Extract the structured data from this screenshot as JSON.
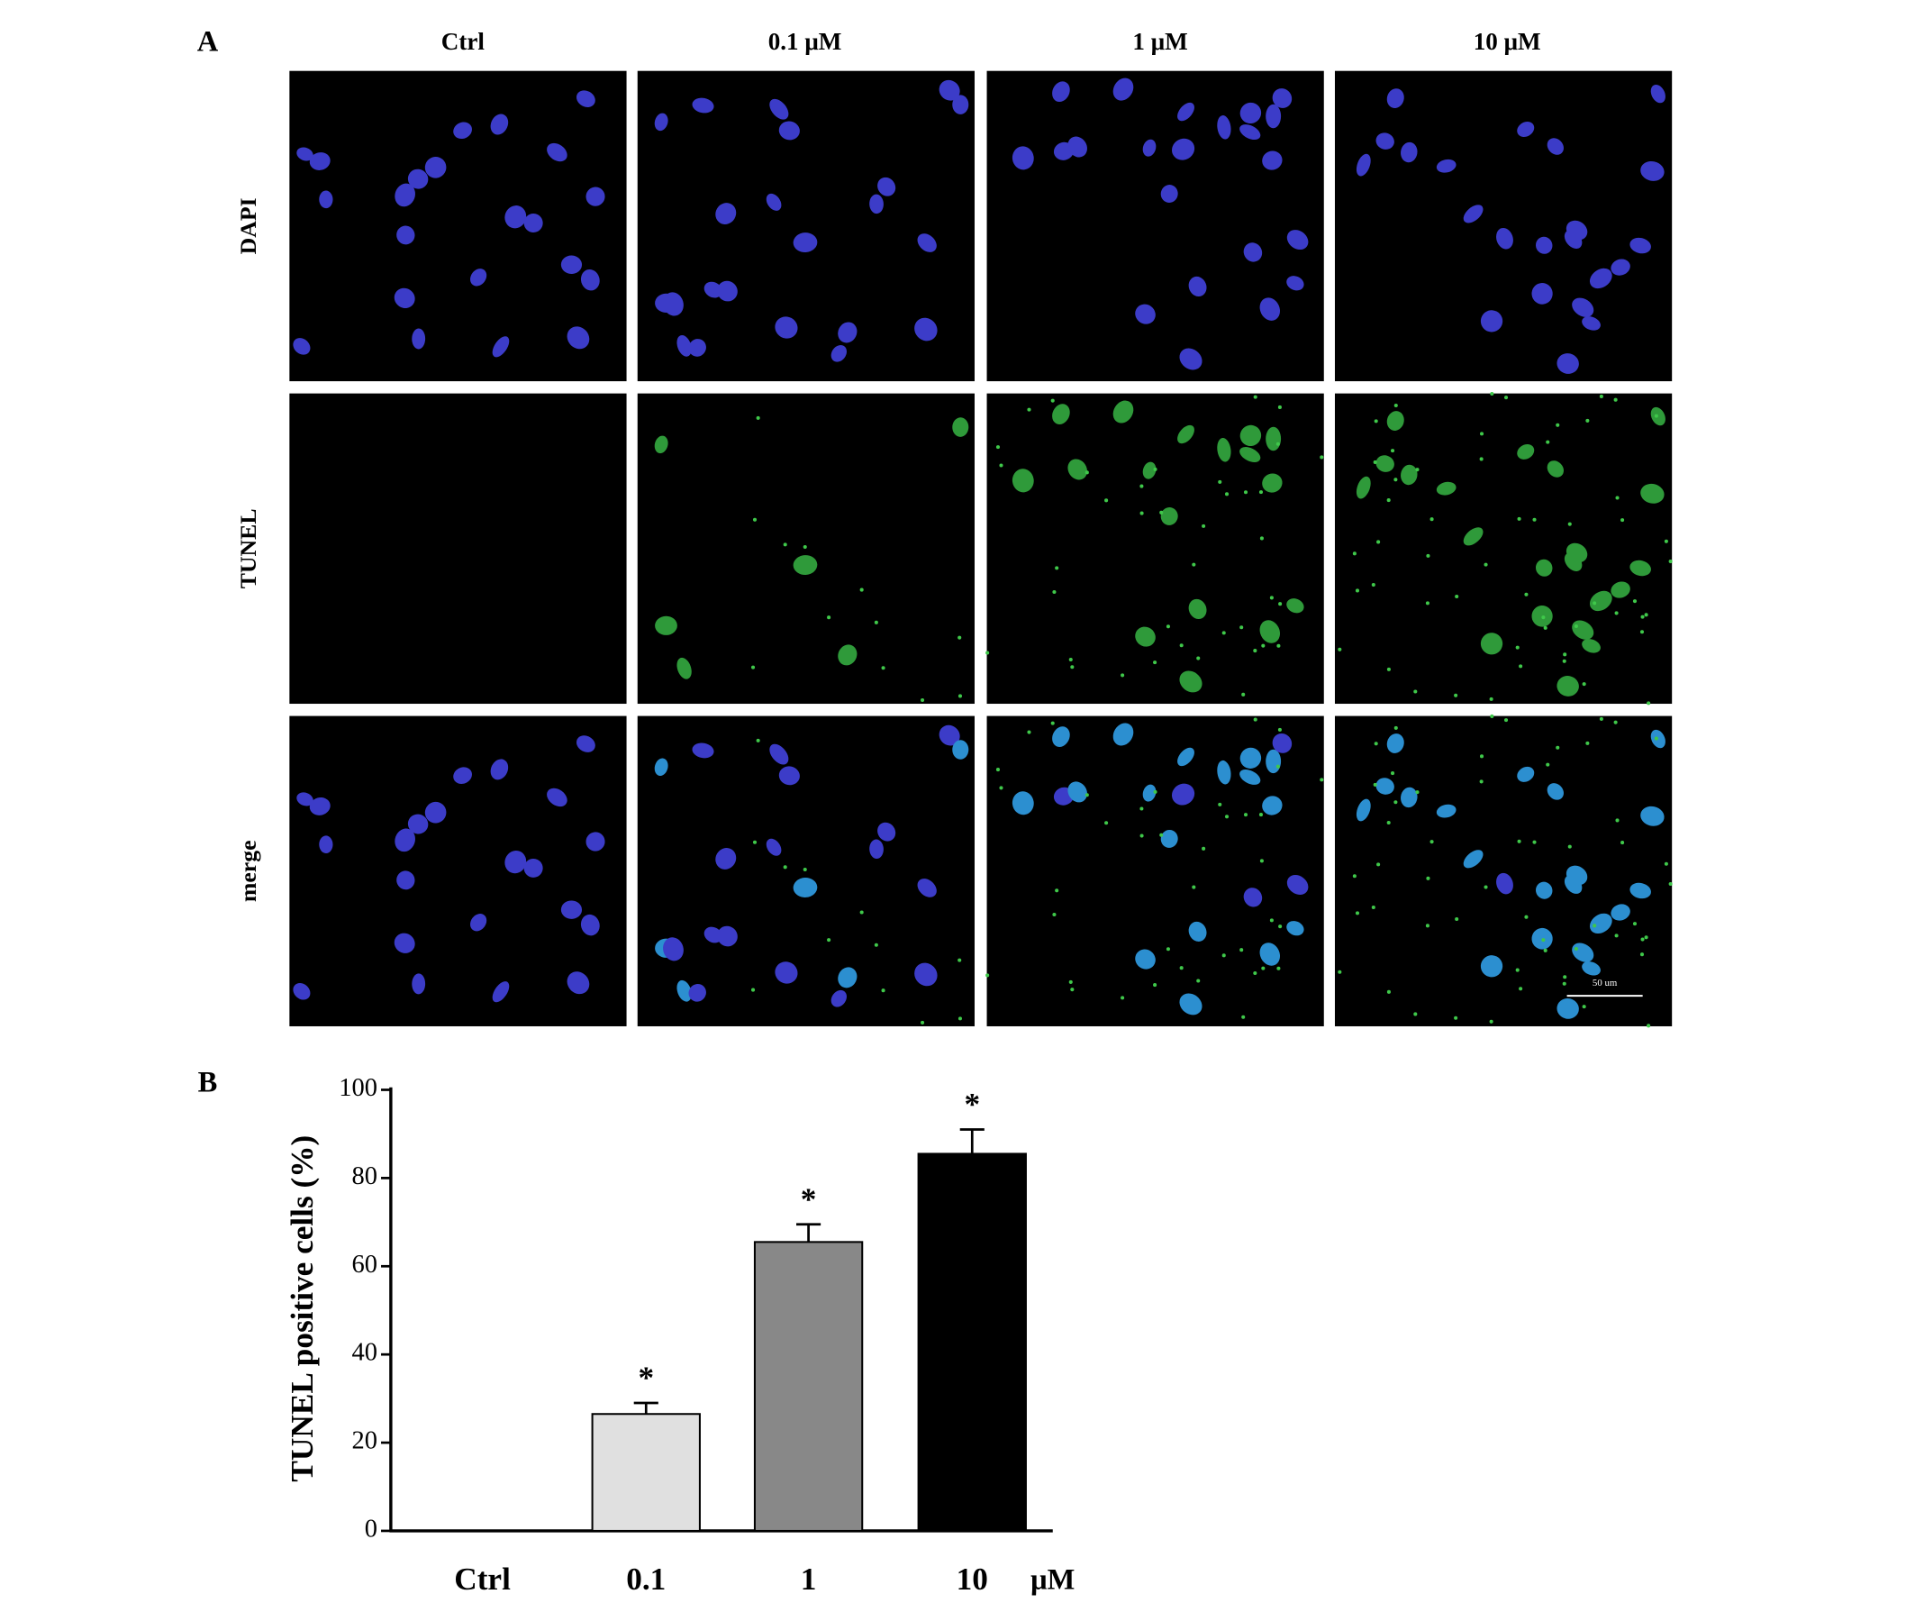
{
  "panel_a": {
    "label": "A",
    "columns": [
      "Ctrl",
      "0.1 μM",
      "1 μM",
      "10 μM"
    ],
    "rows": [
      "DAPI",
      "TUNEL",
      "merge"
    ],
    "scale_bar": "50 um"
  },
  "chart_data": {
    "type": "bar",
    "panel_label": "B",
    "y_label": "TUNEL positive cells (%)",
    "x_label": "μM",
    "categories": [
      "Ctrl",
      "0.1",
      "1",
      "10"
    ],
    "values": [
      0,
      26.5,
      65.5,
      85.5
    ],
    "errors": [
      0,
      2.5,
      4,
      5.5
    ],
    "colors": [
      "#ffffff",
      "#e0e0e0",
      "#888888",
      "#000000"
    ],
    "annotations": [
      null,
      "*",
      "*",
      "*"
    ],
    "ylim": [
      0,
      100
    ],
    "yticks": [
      0,
      20,
      40,
      60,
      80,
      100
    ],
    "grid": false
  }
}
